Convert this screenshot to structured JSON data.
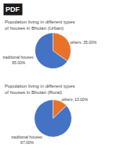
{
  "chart_data": [
    {
      "type": "pie",
      "title": "Population living in different types of houses in Bhutan (Urban)",
      "values": [
        35.0,
        65.0
      ],
      "value_labels": [
        "others: 35.00%",
        "traditional houses:\n65.00%"
      ],
      "colors": [
        "#E8722A",
        "#4472C4"
      ],
      "annotations": [
        "PDF"
      ]
    },
    {
      "type": "pie",
      "title": "Population living in different types of houses in Bhutan (Rural)",
      "values": [
        13.0,
        87.0
      ],
      "value_labels": [
        "others: 13.00%",
        "traditional houses:\n87.00%"
      ],
      "colors": [
        "#E8722A",
        "#4472C4"
      ]
    }
  ]
}
